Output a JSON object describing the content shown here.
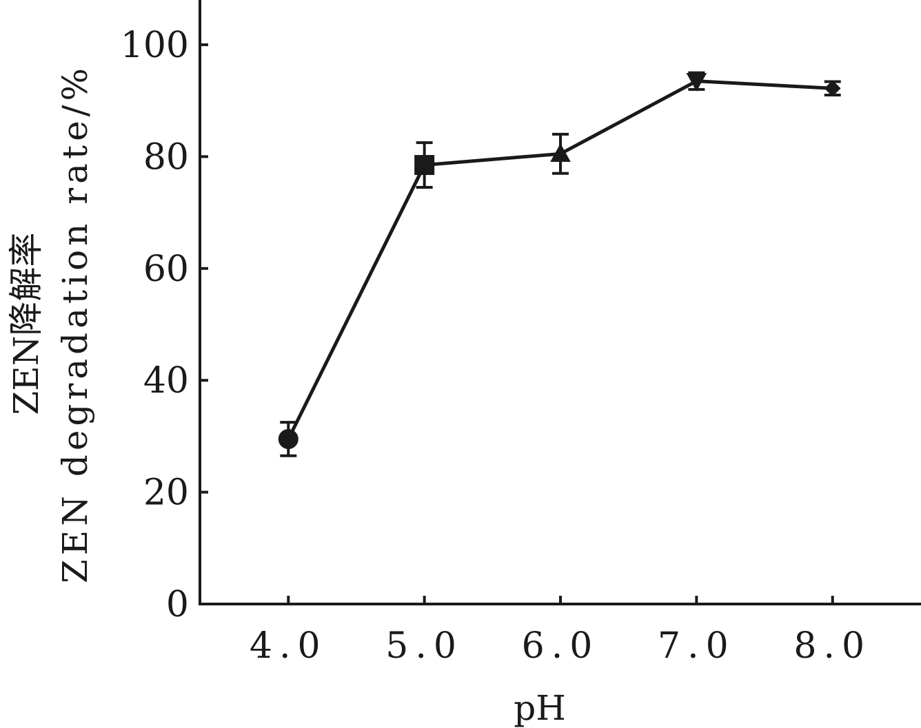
{
  "chart_data": {
    "type": "line",
    "title": "",
    "xlabel": "pH",
    "ylabel": "ZEN降解率",
    "ylabel_en": "ZEN degradation rate/%",
    "x_tick_labels": [
      "4.0",
      "5.0",
      "6.0",
      "7.0",
      "8.0"
    ],
    "x": [
      4.0,
      5.0,
      6.0,
      7.0,
      8.0
    ],
    "y_ticks": [
      0,
      20,
      40,
      60,
      80,
      100
    ],
    "y_tick_labels": [
      "0",
      "20",
      "40",
      "60",
      "80",
      "100"
    ],
    "ylim": [
      0,
      108
    ],
    "xlim": [
      3.35,
      8.65
    ],
    "grid": false,
    "legend": "none",
    "series": [
      {
        "values": [
          29.5,
          78.5,
          80.5,
          93.5,
          92.2
        ],
        "errors": [
          3.0,
          4.0,
          3.5,
          1.5,
          1.2
        ],
        "markers": [
          "circle",
          "square",
          "triangle-up",
          "triangle-down",
          "diamond"
        ],
        "color": "#1a1a1a"
      }
    ]
  }
}
